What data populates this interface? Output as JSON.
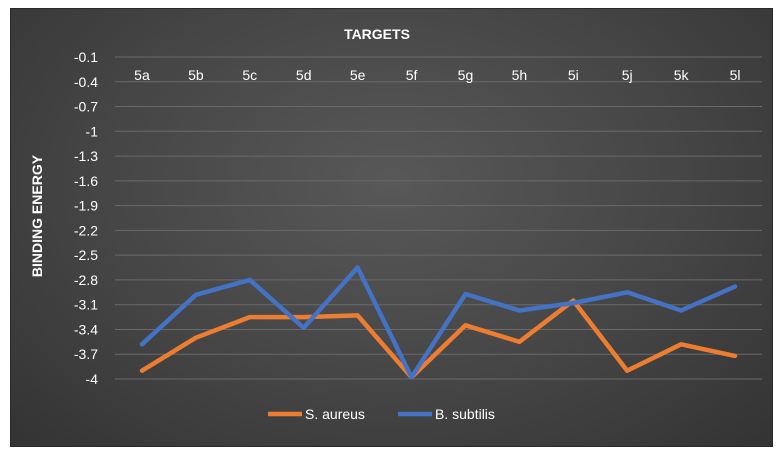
{
  "chart_data": {
    "type": "line",
    "title": "",
    "xlabel": "TARGETS",
    "ylabel": "BINDING ENERGY",
    "x_axis_position": "top",
    "categories": [
      "5a",
      "5b",
      "5c",
      "5d",
      "5e",
      "5f",
      "5g",
      "5h",
      "5i",
      "5j",
      "5k",
      "5l"
    ],
    "y_ticks": [
      "-0.1",
      "-0.4",
      "-0.7",
      "-1",
      "-1.3",
      "-1.6",
      "-1.9",
      "-2.2",
      "-2.5",
      "-2.8",
      "-3.1",
      "-3.4",
      "-3.7",
      "-4"
    ],
    "ylim": [
      -4.0,
      -0.1
    ],
    "grid": true,
    "legend_position": "bottom",
    "series": [
      {
        "name": "S. aureus",
        "color": "#ed7d31",
        "values": [
          -3.9,
          -3.5,
          -3.25,
          -3.25,
          -3.23,
          -3.98,
          -3.35,
          -3.55,
          -3.05,
          -3.9,
          -3.58,
          -3.72
        ]
      },
      {
        "name": "B. subtilis",
        "color": "#4472c4",
        "values": [
          -3.58,
          -2.98,
          -2.8,
          -3.38,
          -2.65,
          -3.98,
          -2.97,
          -3.17,
          -3.08,
          -2.95,
          -3.17,
          -2.88
        ]
      }
    ]
  }
}
